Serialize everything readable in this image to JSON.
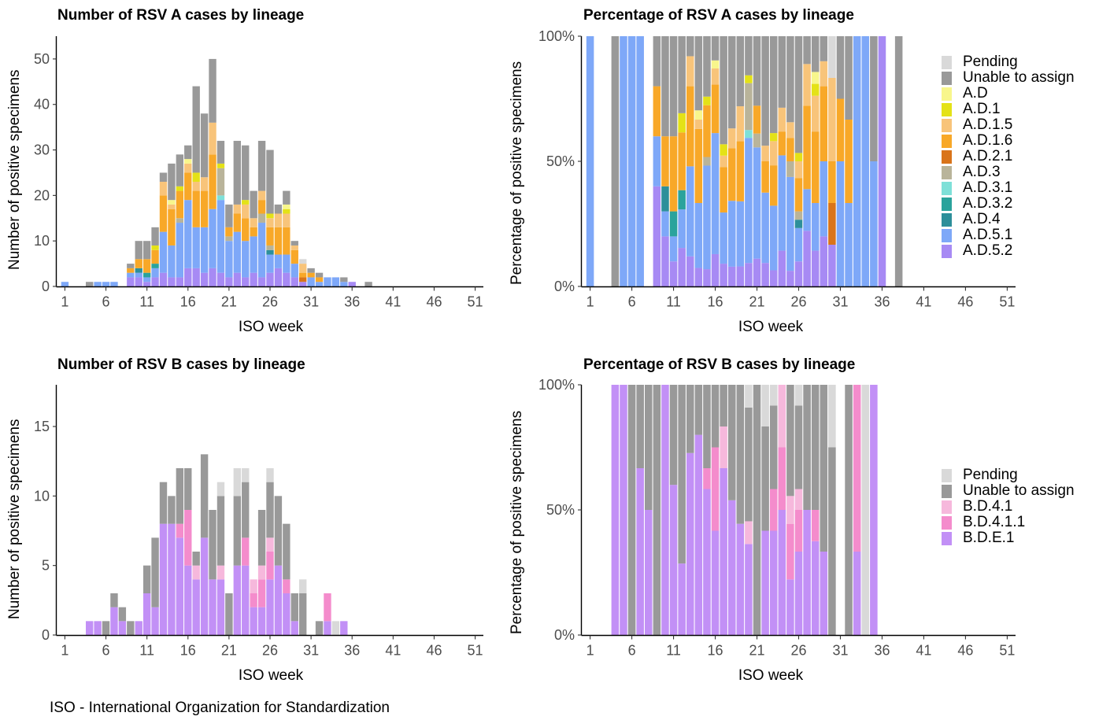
{
  "caption": "ISO - International Organization for Standardization",
  "colors": {
    "Pending": "#d9d9d9",
    "Unable to assign": "#999999",
    "A.D": "#f8f68c",
    "A.D.1": "#e4e217",
    "A.D.1.5": "#f8c47a",
    "A.D.1.6": "#f8a828",
    "A.D.2.1": "#d9741a",
    "A.D.3": "#b9b49a",
    "A.D.3.1": "#7ee0d8",
    "A.D.3.2": "#2aa39c",
    "A.D.4": "#2d8f9a",
    "A.D.5.1": "#7ea8f8",
    "A.D.5.2": "#a78af4",
    "B.D.4.1": "#f6b8dc",
    "B.D.4.1.1": "#f48ccc",
    "B.D.E.1": "#c290f6"
  },
  "legend_a": [
    "Pending",
    "Unable to assign",
    "A.D",
    "A.D.1",
    "A.D.1.5",
    "A.D.1.6",
    "A.D.2.1",
    "A.D.3",
    "A.D.3.1",
    "A.D.3.2",
    "A.D.4",
    "A.D.5.1",
    "A.D.5.2"
  ],
  "legend_b": [
    "Pending",
    "Unable to assign",
    "B.D.4.1",
    "B.D.4.1.1",
    "B.D.E.1"
  ],
  "chart_data": [
    {
      "id": "a_count",
      "type": "bar",
      "stacked": true,
      "title": "Number of RSV A cases by lineage",
      "xlabel": "ISO week",
      "ylabel": "Number of positive specimens",
      "xlim": [
        0,
        52
      ],
      "ylim": [
        0,
        55
      ],
      "xticks": [
        1,
        6,
        11,
        16,
        21,
        26,
        31,
        36,
        41,
        46,
        51
      ],
      "yticks": [
        0,
        10,
        20,
        30,
        40,
        50
      ],
      "bars": [
        {
          "week": 1,
          "stack": {
            "A.D.5.1": 1
          }
        },
        {
          "week": 4,
          "stack": {
            "Unable to assign": 1
          }
        },
        {
          "week": 5,
          "stack": {
            "A.D.5.1": 1
          }
        },
        {
          "week": 6,
          "stack": {
            "A.D.5.1": 1
          }
        },
        {
          "week": 7,
          "stack": {
            "A.D.5.1": 1
          }
        },
        {
          "week": 9,
          "stack": {
            "A.D.5.2": 2,
            "A.D.5.1": 1,
            "A.D.1.6": 1,
            "Unable to assign": 1
          }
        },
        {
          "week": 10,
          "stack": {
            "A.D.5.2": 2,
            "A.D.4": 1,
            "A.D.5.1": 1,
            "A.D.1.6": 2,
            "Unable to assign": 4
          }
        },
        {
          "week": 11,
          "stack": {
            "A.D.5.2": 1,
            "A.D.3.2": 1,
            "A.D.5.1": 1,
            "A.D.1.6": 3,
            "Unable to assign": 4
          }
        },
        {
          "week": 12,
          "stack": {
            "A.D.5.2": 2,
            "A.D.3.2": 1,
            "A.D.5.1": 2,
            "A.D.1.6": 3,
            "A.D.1": 1,
            "Unable to assign": 4
          }
        },
        {
          "week": 13,
          "stack": {
            "A.D.5.2": 3,
            "A.D.5.1": 9,
            "A.D.1.6": 8,
            "A.D.1.5": 3,
            "Unable to assign": 2
          }
        },
        {
          "week": 14,
          "stack": {
            "A.D.5.2": 2,
            "A.D.5.1": 7,
            "A.D.1.6": 8,
            "A.D.1.5": 1,
            "A.D": 1,
            "Unable to assign": 8
          }
        },
        {
          "week": 15,
          "stack": {
            "A.D.5.2": 2,
            "A.D.5.1": 12,
            "A.D.3": 1,
            "A.D.1.6": 6,
            "A.D.1": 1,
            "Unable to assign": 7
          }
        },
        {
          "week": 16,
          "stack": {
            "A.D.5.2": 4,
            "A.D.5.1": 15,
            "A.D.1.6": 6,
            "A.D.1.5": 2,
            "A.D": 1,
            "Unable to assign": 3
          }
        },
        {
          "week": 17,
          "stack": {
            "A.D.5.2": 4,
            "A.D.5.1": 9,
            "A.D.1.6": 8,
            "A.D.1.5": 2,
            "A.D.1": 2,
            "Unable to assign": 19
          }
        },
        {
          "week": 18,
          "stack": {
            "A.D.5.2": 3,
            "A.D.5.1": 10,
            "A.D.1.6": 8,
            "A.D.1.5": 3,
            "Unable to assign": 14
          }
        },
        {
          "week": 19,
          "stack": {
            "A.D.5.2": 4,
            "A.D.5.1": 13,
            "A.D.1.6": 12,
            "A.D.1.5": 7,
            "Unable to assign": 14
          }
        },
        {
          "week": 20,
          "stack": {
            "A.D.5.2": 3,
            "A.D.5.1": 16,
            "A.D.3.1": 1,
            "A.D.3": 6,
            "A.D.1": 1,
            "Unable to assign": 5
          }
        },
        {
          "week": 21,
          "stack": {
            "A.D.5.2": 2,
            "A.D.5.1": 8,
            "A.D.3": 1,
            "A.D.1.6": 2,
            "Unable to assign": 5
          }
        },
        {
          "week": 22,
          "stack": {
            "A.D.5.2": 3,
            "A.D.5.1": 9,
            "A.D.1.6": 4,
            "A.D.1.5": 2,
            "Unable to assign": 14
          }
        },
        {
          "week": 23,
          "stack": {
            "A.D.5.2": 2,
            "A.D.5.1": 8,
            "A.D.1.6": 5,
            "A.D.1.5": 3,
            "A.D.1": 1,
            "Unable to assign": 12
          }
        },
        {
          "week": 24,
          "stack": {
            "A.D.5.2": 3,
            "A.D.5.1": 8,
            "A.D.1.6": 2,
            "A.D.1.5": 2,
            "Unable to assign": 6
          }
        },
        {
          "week": 25,
          "stack": {
            "A.D.5.2": 2,
            "A.D.5.1": 12,
            "A.D.1.6": 3,
            "A.D.3": 2,
            "A.D.1.5": 2,
            "Unable to assign": 11
          }
        },
        {
          "week": 26,
          "stack": {
            "A.D.5.2": 3,
            "A.D.5.1": 4,
            "A.D.4": 1,
            "A.D.1.6": 4,
            "A.D.3": 1,
            "A.D.1.5": 2,
            "A.D.1": 1,
            "Unable to assign": 14
          }
        },
        {
          "week": 27,
          "stack": {
            "A.D.5.2": 4,
            "A.D.5.1": 3,
            "A.D.1.6": 6,
            "A.D.1.5": 3,
            "Unable to assign": 2
          }
        },
        {
          "week": 28,
          "stack": {
            "A.D.5.2": 3,
            "A.D.5.1": 4,
            "A.D.1.6": 6,
            "A.D.1.5": 3,
            "A.D.1": 1,
            "A.D": 1,
            "Unable to assign": 3
          }
        },
        {
          "week": 29,
          "stack": {
            "A.D.5.2": 2,
            "A.D.5.1": 3,
            "A.D.1.6": 3,
            "A.D.1.5": 1,
            "Unable to assign": 1
          }
        },
        {
          "week": 30,
          "stack": {
            "A.D.5.2": 1,
            "A.D.2.1": 1,
            "A.D.1.6": 1,
            "A.D.1.5": 2,
            "Pending": 1
          }
        },
        {
          "week": 31,
          "stack": {
            "A.D.5.1": 2,
            "A.D.1.6": 1,
            "Unable to assign": 1
          }
        },
        {
          "week": 32,
          "stack": {
            "A.D.5.1": 1,
            "A.D.1.6": 1,
            "Unable to assign": 1
          }
        },
        {
          "week": 33,
          "stack": {
            "A.D.5.1": 2
          }
        },
        {
          "week": 34,
          "stack": {
            "A.D.5.1": 2
          }
        },
        {
          "week": 35,
          "stack": {
            "A.D.5.1": 1,
            "Unable to assign": 1
          }
        },
        {
          "week": 36,
          "stack": {
            "A.D.5.2": 1
          }
        },
        {
          "week": 38,
          "stack": {
            "Unable to assign": 1
          }
        }
      ]
    },
    {
      "id": "a_pct",
      "type": "bar",
      "stacked": true,
      "normalized": true,
      "title": "Percentage of RSV A cases by lineage",
      "xlabel": "ISO week",
      "ylabel": "Percentage of positive specimens",
      "xlim": [
        0,
        52
      ],
      "ylim": [
        0,
        100
      ],
      "xticks": [
        1,
        6,
        11,
        16,
        21,
        26,
        31,
        36,
        41,
        46,
        51
      ],
      "yticks": [
        0,
        50,
        100
      ],
      "ytick_labels": [
        "0%",
        "50%",
        "100%"
      ],
      "bars_from": "a_count"
    },
    {
      "id": "b_count",
      "type": "bar",
      "stacked": true,
      "title": "Number of RSV B cases by lineage",
      "xlabel": "ISO week",
      "ylabel": "Number of positive specimens",
      "xlim": [
        0,
        52
      ],
      "ylim": [
        0,
        18
      ],
      "xticks": [
        1,
        6,
        11,
        16,
        21,
        26,
        31,
        36,
        41,
        46,
        51
      ],
      "yticks": [
        0,
        5,
        10,
        15
      ],
      "bars": [
        {
          "week": 4,
          "stack": {
            "B.D.E.1": 1
          }
        },
        {
          "week": 5,
          "stack": {
            "B.D.E.1": 1
          }
        },
        {
          "week": 6,
          "stack": {
            "Unable to assign": 1
          }
        },
        {
          "week": 7,
          "stack": {
            "B.D.E.1": 2,
            "Unable to assign": 1
          }
        },
        {
          "week": 8,
          "stack": {
            "B.D.E.1": 1,
            "Unable to assign": 1
          }
        },
        {
          "week": 9,
          "stack": {
            "Unable to assign": 1
          }
        },
        {
          "week": 10,
          "stack": {
            "B.D.E.1": 1
          }
        },
        {
          "week": 11,
          "stack": {
            "B.D.E.1": 3,
            "Unable to assign": 2
          }
        },
        {
          "week": 12,
          "stack": {
            "B.D.E.1": 2,
            "Unable to assign": 5
          }
        },
        {
          "week": 13,
          "stack": {
            "B.D.E.1": 8,
            "Unable to assign": 3
          }
        },
        {
          "week": 14,
          "stack": {
            "B.D.E.1": 8,
            "Unable to assign": 2
          }
        },
        {
          "week": 15,
          "stack": {
            "B.D.E.1": 7,
            "B.D.4.1.1": 1,
            "Unable to assign": 4
          }
        },
        {
          "week": 16,
          "stack": {
            "B.D.E.1": 5,
            "B.D.4.1.1": 4,
            "Unable to assign": 3
          }
        },
        {
          "week": 17,
          "stack": {
            "B.D.E.1": 4,
            "B.D.4.1": 1,
            "Unable to assign": 1
          }
        },
        {
          "week": 18,
          "stack": {
            "B.D.E.1": 7,
            "Unable to assign": 6
          }
        },
        {
          "week": 19,
          "stack": {
            "B.D.E.1": 4,
            "Unable to assign": 5
          }
        },
        {
          "week": 20,
          "stack": {
            "B.D.E.1": 4,
            "B.D.4.1": 1,
            "Unable to assign": 5,
            "Pending": 1
          }
        },
        {
          "week": 21,
          "stack": {
            "Unable to assign": 3
          }
        },
        {
          "week": 22,
          "stack": {
            "B.D.E.1": 5,
            "Unable to assign": 5,
            "Pending": 2
          }
        },
        {
          "week": 23,
          "stack": {
            "B.D.E.1": 5,
            "B.D.4.1.1": 2,
            "Unable to assign": 4,
            "Pending": 1
          }
        },
        {
          "week": 24,
          "stack": {
            "B.D.E.1": 2,
            "B.D.4.1.1": 1,
            "B.D.4.1": 1
          }
        },
        {
          "week": 25,
          "stack": {
            "B.D.E.1": 2,
            "B.D.4.1.1": 2,
            "B.D.4.1": 1,
            "Unable to assign": 4
          }
        },
        {
          "week": 26,
          "stack": {
            "B.D.E.1": 4,
            "B.D.4.1.1": 2,
            "B.D.4.1": 1,
            "Unable to assign": 4,
            "Pending": 1
          }
        },
        {
          "week": 27,
          "stack": {
            "B.D.E.1": 5,
            "Unable to assign": 5
          }
        },
        {
          "week": 28,
          "stack": {
            "B.D.E.1": 3,
            "B.D.4.1.1": 1,
            "Unable to assign": 4
          }
        },
        {
          "week": 29,
          "stack": {
            "B.D.E.1": 1,
            "Unable to assign": 2
          }
        },
        {
          "week": 30,
          "stack": {
            "Unable to assign": 3,
            "Pending": 1
          }
        },
        {
          "week": 32,
          "stack": {
            "Unable to assign": 1
          }
        },
        {
          "week": 33,
          "stack": {
            "B.D.E.1": 1,
            "B.D.4.1.1": 2
          }
        },
        {
          "week": 34,
          "stack": {
            "Pending": 1
          }
        },
        {
          "week": 35,
          "stack": {
            "B.D.E.1": 1
          }
        }
      ]
    },
    {
      "id": "b_pct",
      "type": "bar",
      "stacked": true,
      "normalized": true,
      "title": "Percentage of RSV B cases by lineage",
      "xlabel": "ISO week",
      "ylabel": "Percentage of positive specimens",
      "xlim": [
        0,
        52
      ],
      "ylim": [
        0,
        100
      ],
      "xticks": [
        1,
        6,
        11,
        16,
        21,
        26,
        31,
        36,
        41,
        46,
        51
      ],
      "yticks": [
        0,
        50,
        100
      ],
      "ytick_labels": [
        "0%",
        "50%",
        "100%"
      ],
      "bars_from": "b_count"
    }
  ]
}
